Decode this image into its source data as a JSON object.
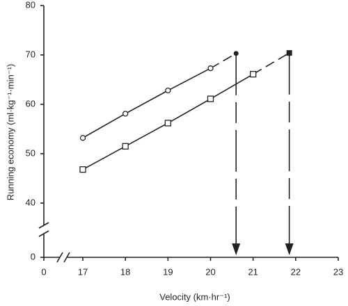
{
  "chart_data": {
    "type": "line",
    "xlabel": "Velocity (km·hr⁻¹)",
    "ylabel": "Running economy (ml·kg⁻¹·min⁻¹)",
    "x": [
      17,
      18,
      19,
      20,
      21
    ],
    "series": [
      {
        "color": "#222222",
        "marker": "circle",
        "values": [
          53.2,
          58.1,
          62.8,
          67.3,
          null
        ],
        "peak": {
          "x": 20.6,
          "y": 70.3
        }
      },
      {
        "color": "#222222",
        "marker": "square",
        "values": [
          46.8,
          51.5,
          56.2,
          61.1,
          66.1
        ],
        "peak": {
          "x": 21.85,
          "y": 70.4
        }
      }
    ],
    "xlim": [
      0,
      23
    ],
    "xticks": [
      0,
      17,
      18,
      19,
      20,
      21,
      22,
      23
    ],
    "ylim": [
      0,
      80
    ],
    "yticks": [
      0,
      40,
      50,
      60,
      70,
      80
    ],
    "x_axis_break": true,
    "y_axis_break": true
  }
}
